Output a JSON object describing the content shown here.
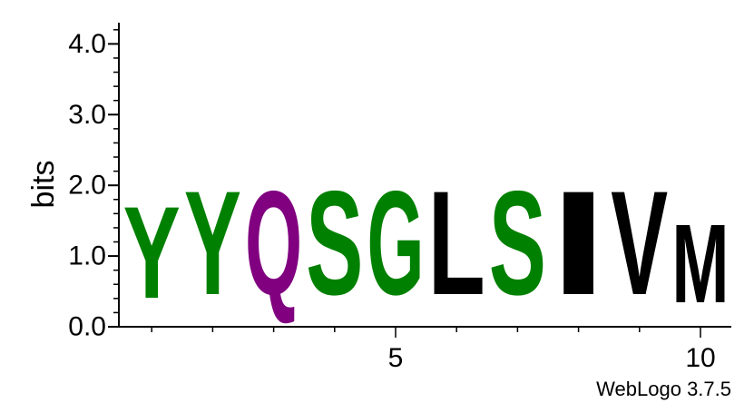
{
  "chart_data": {
    "type": "sequence-logo",
    "title": "",
    "ylabel": "bits",
    "xlabel": "",
    "ylim": [
      0,
      4.3
    ],
    "y_ticks": [
      {
        "value": 0,
        "label": "0.0"
      },
      {
        "value": 1,
        "label": "1.0"
      },
      {
        "value": 2,
        "label": "2.0"
      },
      {
        "value": 3,
        "label": "3.0"
      },
      {
        "value": 4,
        "label": "4.0"
      }
    ],
    "x_ticks": [
      {
        "value": 5,
        "label": "5"
      },
      {
        "value": 10,
        "label": "10"
      }
    ],
    "xlim": [
      0.5,
      10.5
    ],
    "positions": [
      {
        "position": 1,
        "letter": "Y",
        "bits": 2.08,
        "color": "#008000"
      },
      {
        "position": 2,
        "letter": "Y",
        "bits": 2.35,
        "color": "#008000"
      },
      {
        "position": 3,
        "letter": "Q",
        "bits": 2.35,
        "color": "#800080"
      },
      {
        "position": 4,
        "letter": "S",
        "bits": 2.35,
        "color": "#008000"
      },
      {
        "position": 5,
        "letter": "G",
        "bits": 2.35,
        "color": "#008000"
      },
      {
        "position": 6,
        "letter": "L",
        "bits": 2.35,
        "color": "#000000"
      },
      {
        "position": 7,
        "letter": "S",
        "bits": 2.35,
        "color": "#008000"
      },
      {
        "position": 8,
        "letter": "I",
        "bits": 2.35,
        "color": "#000000"
      },
      {
        "position": 9,
        "letter": "V",
        "bits": 2.35,
        "color": "#000000"
      },
      {
        "position": 10,
        "letter": "M",
        "bits": 1.78,
        "color": "#000000"
      }
    ]
  },
  "footer": "WebLogo 3.7.5"
}
